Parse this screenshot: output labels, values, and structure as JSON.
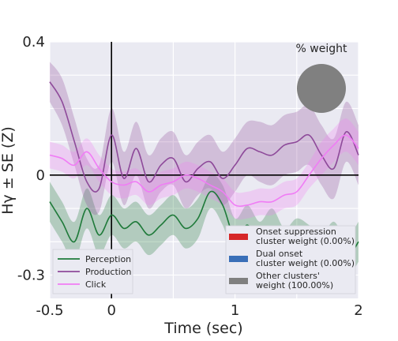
{
  "chart_data": {
    "type": "line",
    "xlabel": "Time (sec)",
    "ylabel": "Hγ ± SE (Z)",
    "xlim": [
      -0.5,
      2.0
    ],
    "ylim": [
      -0.37,
      0.4
    ],
    "x_ticks": [
      {
        "value": -0.5,
        "label": "-0.5"
      },
      {
        "value": 0,
        "label": "0"
      },
      {
        "value": 1,
        "label": "1"
      },
      {
        "value": 2,
        "label": "2"
      }
    ],
    "y_ticks": [
      {
        "value": 0.4,
        "label": "0.4"
      },
      {
        "value": 0,
        "label": "0"
      },
      {
        "value": -0.3,
        "label": "-0.3"
      }
    ],
    "grid": true,
    "reference_lines": {
      "x": 0,
      "y": 0
    },
    "series": [
      {
        "name": "Perception",
        "color": "#1f7a3a",
        "band_color": "#1f7a3a",
        "x": [
          -0.5,
          -0.4,
          -0.3,
          -0.2,
          -0.1,
          0,
          0.1,
          0.2,
          0.3,
          0.4,
          0.5,
          0.6,
          0.7,
          0.8,
          0.9,
          1.0,
          1.1,
          1.2,
          1.3,
          1.4,
          1.5,
          1.6,
          1.7,
          1.8,
          1.9,
          2.0
        ],
        "y": [
          -0.08,
          -0.14,
          -0.2,
          -0.1,
          -0.18,
          -0.12,
          -0.16,
          -0.14,
          -0.18,
          -0.15,
          -0.12,
          -0.16,
          -0.13,
          -0.05,
          -0.09,
          -0.19,
          -0.15,
          -0.2,
          -0.16,
          -0.22,
          -0.19,
          -0.21,
          -0.24,
          -0.2,
          -0.25,
          -0.2
        ],
        "se": [
          0.06,
          0.06,
          0.06,
          0.06,
          0.06,
          0.06,
          0.06,
          0.06,
          0.06,
          0.06,
          0.06,
          0.06,
          0.06,
          0.05,
          0.06,
          0.06,
          0.06,
          0.06,
          0.06,
          0.06,
          0.06,
          0.06,
          0.06,
          0.06,
          0.06,
          0.06
        ]
      },
      {
        "name": "Production",
        "color": "#8e4a9a",
        "band_color": "#8e4a9a",
        "x": [
          -0.5,
          -0.4,
          -0.3,
          -0.2,
          -0.1,
          0,
          0.1,
          0.2,
          0.3,
          0.4,
          0.5,
          0.6,
          0.7,
          0.8,
          0.9,
          1.0,
          1.1,
          1.2,
          1.3,
          1.4,
          1.5,
          1.6,
          1.7,
          1.8,
          1.9,
          2.0
        ],
        "y": [
          0.28,
          0.22,
          0.1,
          -0.02,
          -0.04,
          0.12,
          -0.01,
          0.08,
          -0.02,
          0.03,
          0.05,
          -0.02,
          0.02,
          0.04,
          -0.01,
          0.03,
          0.08,
          0.07,
          0.06,
          0.09,
          0.1,
          0.12,
          0.06,
          0.02,
          0.13,
          0.06
        ],
        "se": [
          0.06,
          0.07,
          0.07,
          0.07,
          0.07,
          0.08,
          0.08,
          0.08,
          0.08,
          0.08,
          0.08,
          0.08,
          0.08,
          0.08,
          0.08,
          0.08,
          0.08,
          0.09,
          0.09,
          0.09,
          0.09,
          0.09,
          0.09,
          0.09,
          0.09,
          0.09
        ]
      },
      {
        "name": "Click",
        "color": "#f07cf5",
        "band_color": "#f07cf5",
        "x": [
          -0.5,
          -0.4,
          -0.3,
          -0.2,
          -0.1,
          0,
          0.1,
          0.2,
          0.3,
          0.4,
          0.5,
          0.6,
          0.7,
          0.8,
          0.9,
          1.0,
          1.1,
          1.2,
          1.3,
          1.4,
          1.5,
          1.6,
          1.7,
          1.8,
          1.9,
          2.0
        ],
        "y": [
          0.06,
          0.05,
          0.03,
          0.07,
          0.02,
          -0.02,
          -0.03,
          -0.02,
          -0.05,
          -0.03,
          -0.02,
          0.0,
          -0.01,
          -0.03,
          -0.05,
          -0.09,
          -0.09,
          -0.08,
          -0.08,
          -0.06,
          -0.05,
          0.0,
          0.05,
          0.09,
          0.12,
          0.08
        ],
        "se": [
          0.04,
          0.04,
          0.04,
          0.04,
          0.04,
          0.04,
          0.04,
          0.04,
          0.04,
          0.04,
          0.04,
          0.04,
          0.04,
          0.04,
          0.04,
          0.04,
          0.04,
          0.04,
          0.04,
          0.04,
          0.04,
          0.04,
          0.05,
          0.05,
          0.05,
          0.05
        ]
      }
    ],
    "legend": {
      "placement": "lower-left",
      "entries": [
        "Perception",
        "Production",
        "Click"
      ]
    },
    "weight_legend": {
      "placement": "lower-right",
      "entries": [
        {
          "line1": "Onset suppression",
          "line2": "cluster weight (0.00%)",
          "color": "#d62728"
        },
        {
          "line1": "Dual onset",
          "line2": "cluster weight (0.00%)",
          "color": "#3a6fb8"
        },
        {
          "line1": "Other clusters'",
          "line2": "weight (100.00%)",
          "color": "#808080"
        }
      ]
    },
    "inset": {
      "title": "% weight",
      "color": "#808080",
      "fraction": 1.0
    }
  }
}
